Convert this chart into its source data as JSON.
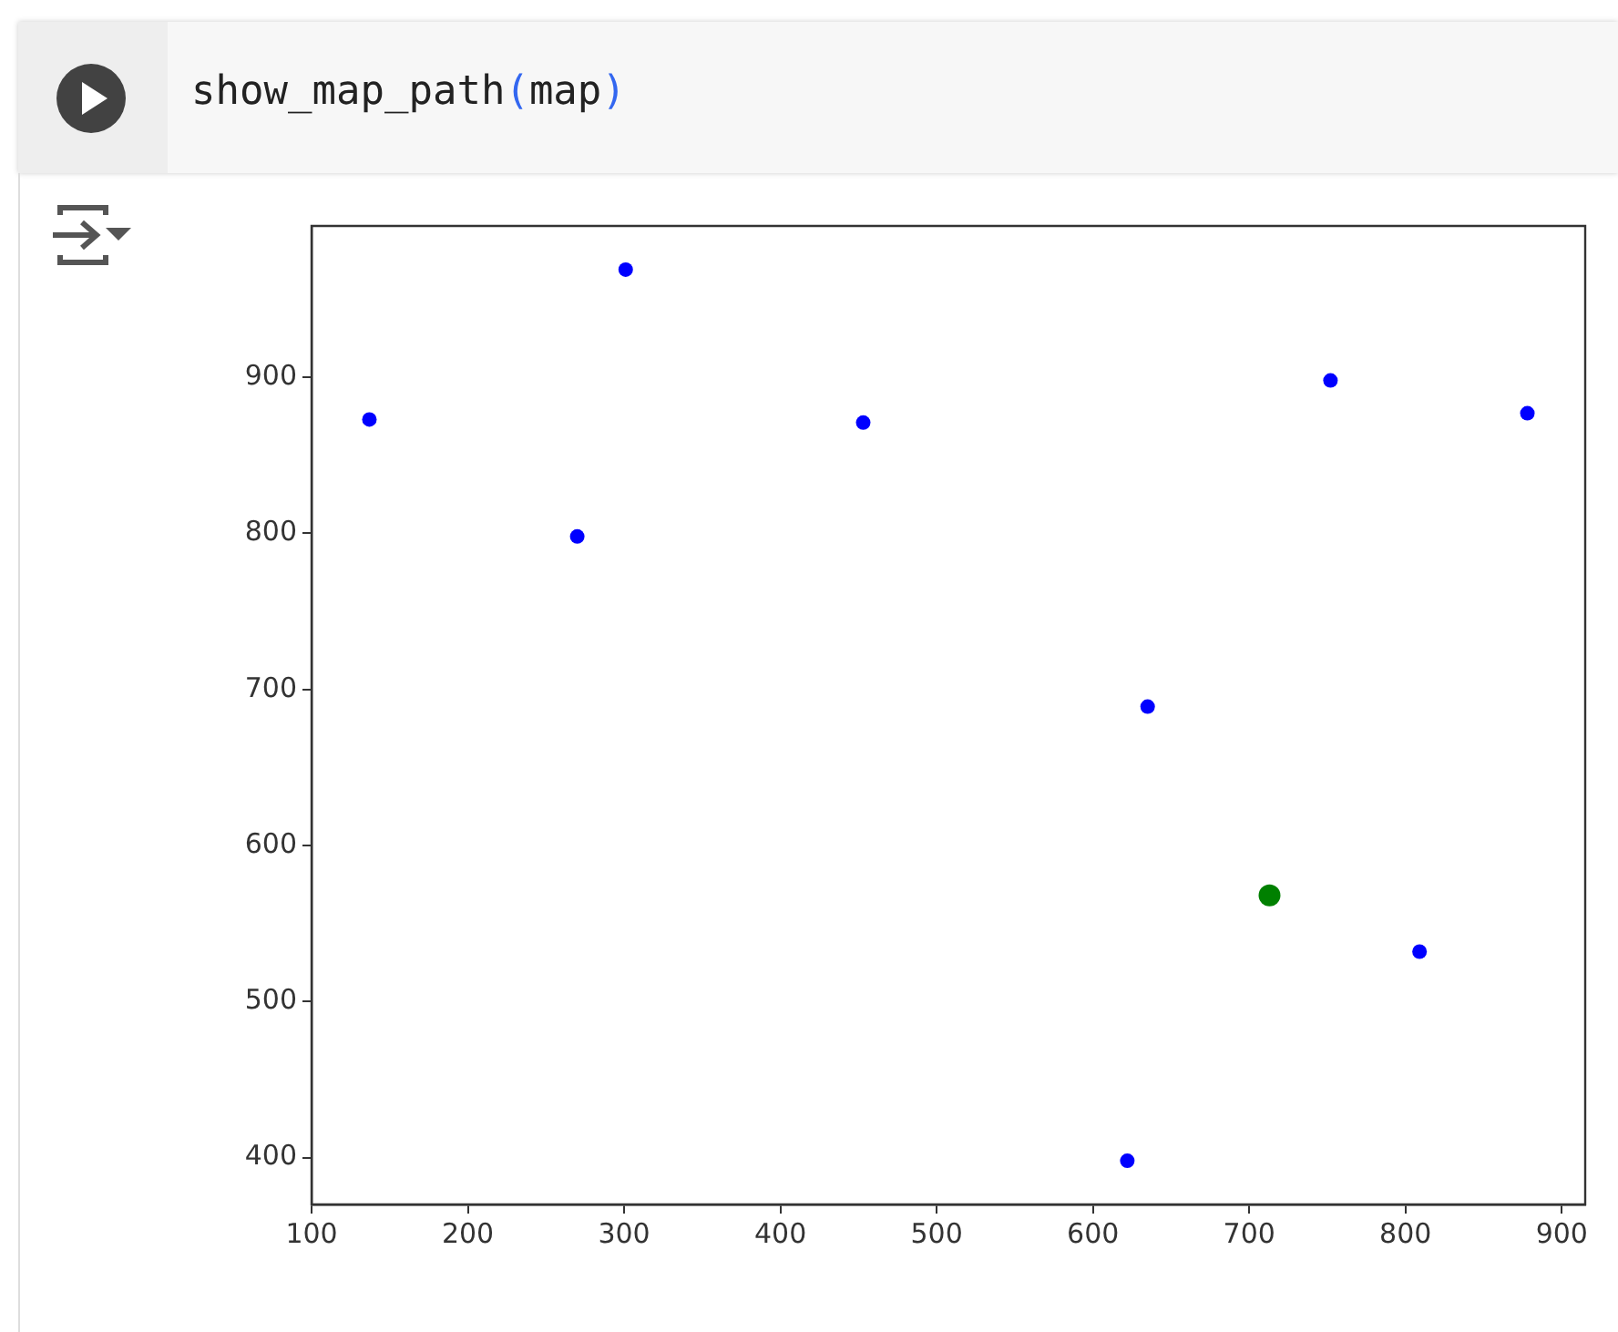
{
  "chart_data": {
    "type": "scatter",
    "annotations": [
      "show_map_path(map)"
    ],
    "xlim": [
      100,
      915
    ],
    "ylim": [
      370,
      997
    ],
    "xticks": [
      100,
      200,
      300,
      400,
      500,
      600,
      700,
      800,
      900
    ],
    "yticks": [
      400,
      500,
      600,
      700,
      800,
      900
    ],
    "grid": false,
    "legend": false,
    "marker": "circle",
    "series": [
      {
        "color": "#0000ff",
        "x": [
          137,
          301,
          270,
          453,
          752,
          878,
          635,
          809,
          622
        ],
        "values": [
          873,
          969,
          798,
          871,
          898,
          877,
          689,
          532,
          398
        ]
      },
      {
        "color": "#008000",
        "x": [
          713
        ],
        "values": [
          568
        ]
      }
    ]
  }
}
